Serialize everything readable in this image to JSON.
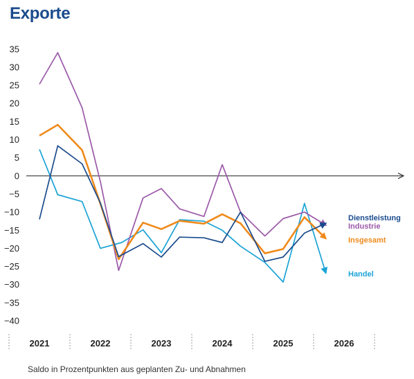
{
  "chart_data": {
    "type": "line",
    "title": "Exporte",
    "footnote": "Saldo in Prozentpunkten aus geplanten Zu- und Abnahmen",
    "ylim": [
      -40,
      35
    ],
    "y_ticks": [
      35,
      30,
      25,
      20,
      15,
      10,
      5,
      0,
      -5,
      -10,
      -15,
      -20,
      -25,
      -30,
      -35,
      -40
    ],
    "year_labels": [
      "2021",
      "2022",
      "2023",
      "2024",
      "2025",
      "2026"
    ],
    "grid": false,
    "series": [
      {
        "name": "Handel",
        "color": "#1ba3d6",
        "points": [
          [
            2021.0,
            7.3
          ],
          [
            2021.3,
            -5.2
          ],
          [
            2021.7,
            -7.1
          ],
          [
            2022.0,
            -20.0
          ],
          [
            2022.35,
            -18.4
          ],
          [
            2022.7,
            -14.9
          ],
          [
            2023.0,
            -21.2
          ],
          [
            2023.3,
            -12.1
          ],
          [
            2023.7,
            -12.5
          ],
          [
            2024.0,
            -15.0
          ],
          [
            2024.3,
            -19.4
          ],
          [
            2024.7,
            -23.9
          ],
          [
            2025.0,
            -29.3
          ],
          [
            2025.35,
            -7.6
          ],
          [
            2025.7,
            -26.8
          ]
        ]
      },
      {
        "name": "Industrie",
        "color": "#9b59a8",
        "points": [
          [
            2021.0,
            25.3
          ],
          [
            2021.3,
            34.0
          ],
          [
            2021.7,
            18.8
          ],
          [
            2022.0,
            -1.6
          ],
          [
            2022.3,
            -26.1
          ],
          [
            2022.7,
            -6.1
          ],
          [
            2023.0,
            -3.5
          ],
          [
            2023.3,
            -9.1
          ],
          [
            2023.7,
            -11.2
          ],
          [
            2024.0,
            3.1
          ],
          [
            2024.3,
            -10.0
          ],
          [
            2024.7,
            -16.6
          ],
          [
            2025.0,
            -11.8
          ],
          [
            2025.35,
            -10.0
          ],
          [
            2025.7,
            -13.6
          ]
        ]
      },
      {
        "name": "Insgesamt",
        "color": "#ef8a1b",
        "points": [
          [
            2021.0,
            11.1
          ],
          [
            2021.3,
            14.1
          ],
          [
            2021.7,
            7.1
          ],
          [
            2022.0,
            -7.7
          ],
          [
            2022.3,
            -23.0
          ],
          [
            2022.7,
            -12.9
          ],
          [
            2023.0,
            -14.7
          ],
          [
            2023.3,
            -12.4
          ],
          [
            2023.7,
            -13.2
          ],
          [
            2024.0,
            -10.6
          ],
          [
            2024.3,
            -13.1
          ],
          [
            2024.7,
            -21.4
          ],
          [
            2025.0,
            -20.2
          ],
          [
            2025.35,
            -11.4
          ],
          [
            2025.7,
            -17.3
          ]
        ]
      },
      {
        "name": "Dienstleistung",
        "color": "#1a4b8c",
        "points": [
          [
            2021.0,
            -12.0
          ],
          [
            2021.3,
            8.3
          ],
          [
            2021.7,
            3.3
          ],
          [
            2022.0,
            -7.5
          ],
          [
            2022.3,
            -22.3
          ],
          [
            2022.7,
            -18.7
          ],
          [
            2023.0,
            -22.4
          ],
          [
            2023.3,
            -16.9
          ],
          [
            2023.7,
            -17.1
          ],
          [
            2024.0,
            -18.4
          ],
          [
            2024.3,
            -10.0
          ],
          [
            2024.7,
            -23.6
          ],
          [
            2025.0,
            -22.4
          ],
          [
            2025.35,
            -15.8
          ],
          [
            2025.7,
            -13.1
          ]
        ]
      }
    ]
  }
}
